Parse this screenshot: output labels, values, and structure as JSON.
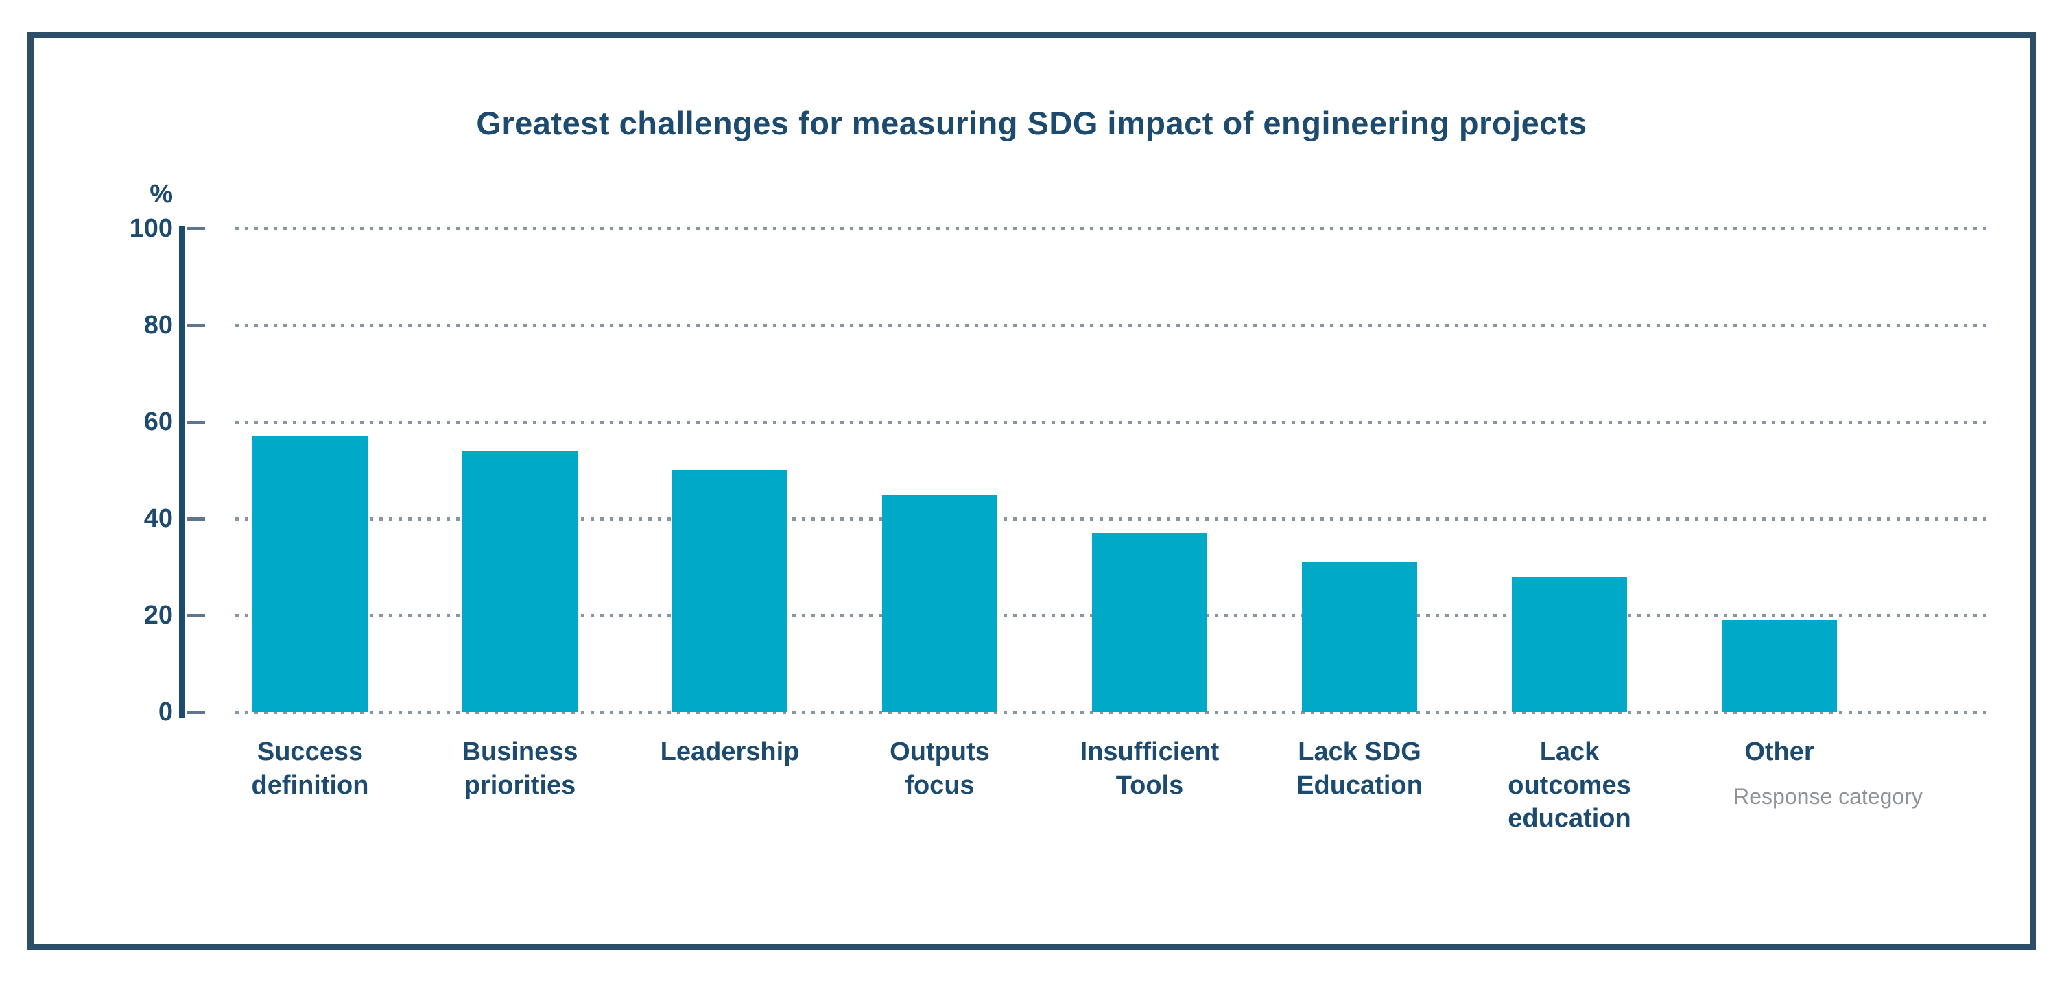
{
  "chart_data": {
    "type": "bar",
    "title": "Greatest challenges for measuring SDG impact of engineering projects",
    "y_unit_label": "%",
    "x_axis_caption": "Response category",
    "categories": [
      "Success\ndefinition",
      "Business\npriorities",
      "Leadership",
      "Outputs\nfocus",
      "Insufficient\nTools",
      "Lack SDG\nEducation",
      "Lack\noutcomes\neducation",
      "Other"
    ],
    "values": [
      57,
      54,
      50,
      45,
      37,
      31,
      28,
      19
    ],
    "ylim": [
      0,
      100
    ],
    "yticks": [
      0,
      20,
      40,
      60,
      80,
      100
    ],
    "grid": "horizontal-dotted",
    "legend": "none"
  },
  "colors": {
    "bar": "#00a9c8",
    "text_navy": "#1d4b70",
    "frame_border": "#2c4e69",
    "grid_dots": "#8595a3",
    "caption_gray": "#8f9397",
    "background": "#ffffff"
  }
}
